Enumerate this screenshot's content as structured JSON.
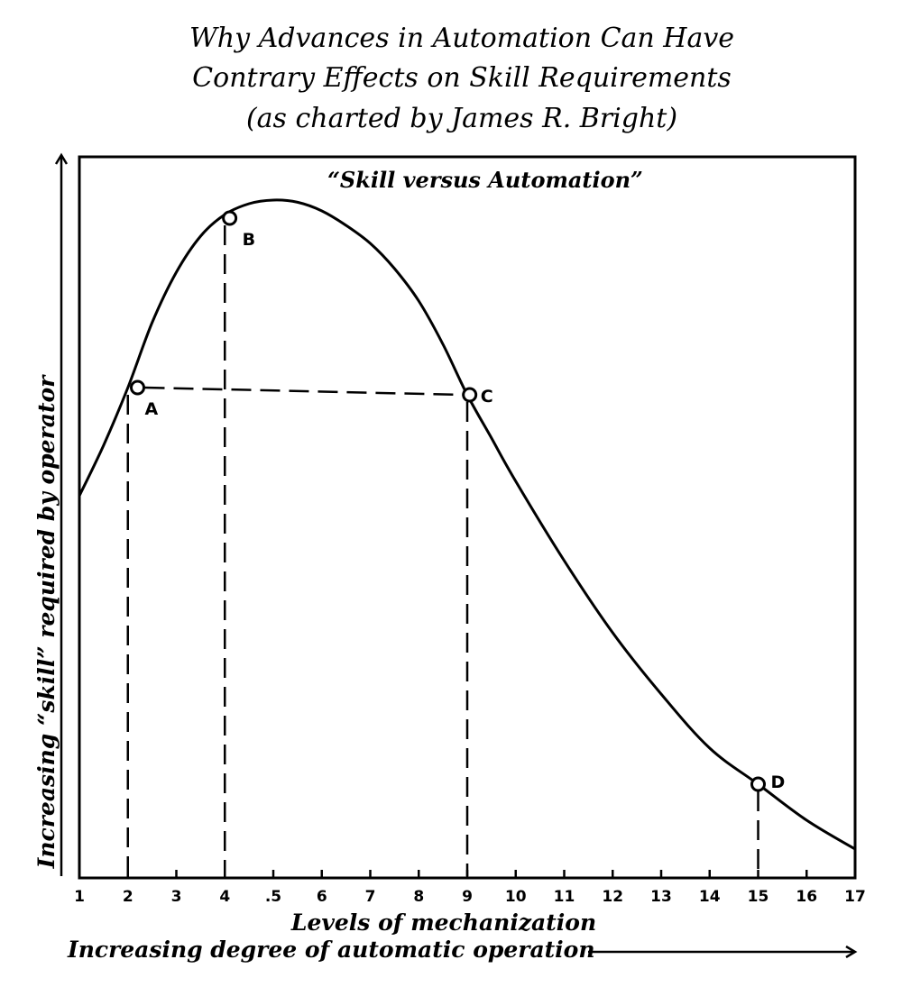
{
  "chart_data": {
    "type": "line",
    "title_lines": [
      "Why Advances in Automation Can Have",
      "Contrary Effects on Skill Requirements",
      "(as charted by James R. Bright)"
    ],
    "subtitle": "“Skill versus Automation”",
    "xlabel": "Levels of mechanization",
    "xlabel_secondary": "Increasing degree of automatic operation",
    "ylabel": "Increasing “skill” required by operator",
    "x_ticks": [
      "1",
      "2",
      "3",
      "4",
      ".5",
      "6",
      "7",
      "8",
      "9",
      "10",
      "11",
      "12",
      "13",
      "14",
      "15",
      "16",
      "17"
    ],
    "xlim": [
      1,
      17
    ],
    "ylim": [
      0,
      100
    ],
    "grid": false,
    "curve": {
      "x": [
        1,
        1.5,
        2,
        2.5,
        3,
        3.5,
        4,
        4.5,
        5,
        5.5,
        6,
        6.5,
        7,
        7.5,
        8,
        8.5,
        9,
        9.5,
        10,
        11,
        12,
        13,
        14,
        15,
        16,
        17
      ],
      "y": [
        53,
        60,
        68,
        77,
        84,
        89,
        92,
        93.5,
        94,
        93.7,
        92.5,
        90.5,
        88,
        84.5,
        80,
        74,
        67,
        61,
        55,
        44,
        34,
        25.5,
        18,
        13,
        8,
        4
      ]
    },
    "points": [
      {
        "label": "A",
        "x": 2.2,
        "y": 68
      },
      {
        "label": "B",
        "x": 4.1,
        "y": 91.5
      },
      {
        "label": "C",
        "x": 9.05,
        "y": 67
      },
      {
        "label": "D",
        "x": 15,
        "y": 13
      }
    ]
  }
}
